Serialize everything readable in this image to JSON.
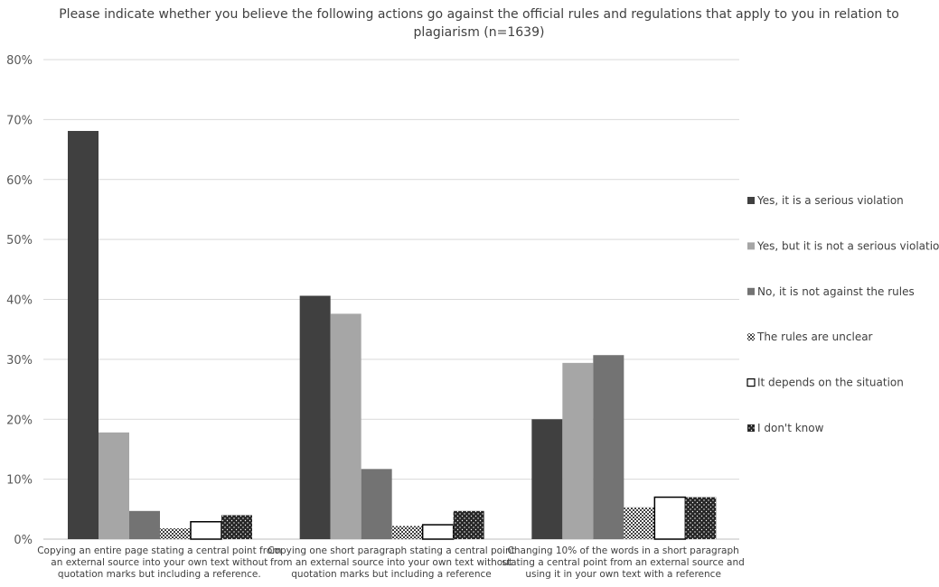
{
  "chart_data": {
    "type": "bar",
    "title": "Please indicate whether you believe the following actions go against the official rules and regulations that apply to you in relation to plagiarism (n=1639)",
    "xlabel": "",
    "ylabel": "",
    "ylim": [
      0,
      80
    ],
    "yticks": [
      "0%",
      "10%",
      "20%",
      "30%",
      "40%",
      "50%",
      "60%",
      "70%",
      "80%"
    ],
    "grid": true,
    "legend_position": "right",
    "categories": [
      [
        "Copying an entire page stating a central point from",
        "an external source into your own text without",
        "quotation marks but including a reference."
      ],
      [
        "Copying one short paragraph stating a central point",
        "from an external source into your own text without",
        "quotation marks but including a reference"
      ],
      [
        "Changing 10% of the words in a short paragraph",
        "stating a central point from an external source and",
        "using it in your own text with a reference"
      ]
    ],
    "series": [
      {
        "name": "Yes, it is a serious violation",
        "values": [
          68.1,
          40.6,
          20.0
        ],
        "color": "#404040",
        "pattern": "solid"
      },
      {
        "name": "Yes, but it is not a serious violation",
        "values": [
          17.8,
          37.6,
          29.4
        ],
        "color": "#a6a6a6",
        "pattern": "solid"
      },
      {
        "name": "No, it is not against the rules",
        "values": [
          4.7,
          11.7,
          30.7
        ],
        "color": "#737373",
        "pattern": "solid"
      },
      {
        "name": "The rules are unclear",
        "values": [
          1.8,
          2.2,
          5.3
        ],
        "color": "#404040",
        "pattern": "checker"
      },
      {
        "name": "It depends on the situation",
        "values": [
          2.9,
          2.4,
          7.0
        ],
        "color": "#000000",
        "pattern": "outline"
      },
      {
        "name": "I don't know",
        "values": [
          4.0,
          4.7,
          7.0
        ],
        "color": "#262626",
        "pattern": "dots"
      }
    ]
  }
}
